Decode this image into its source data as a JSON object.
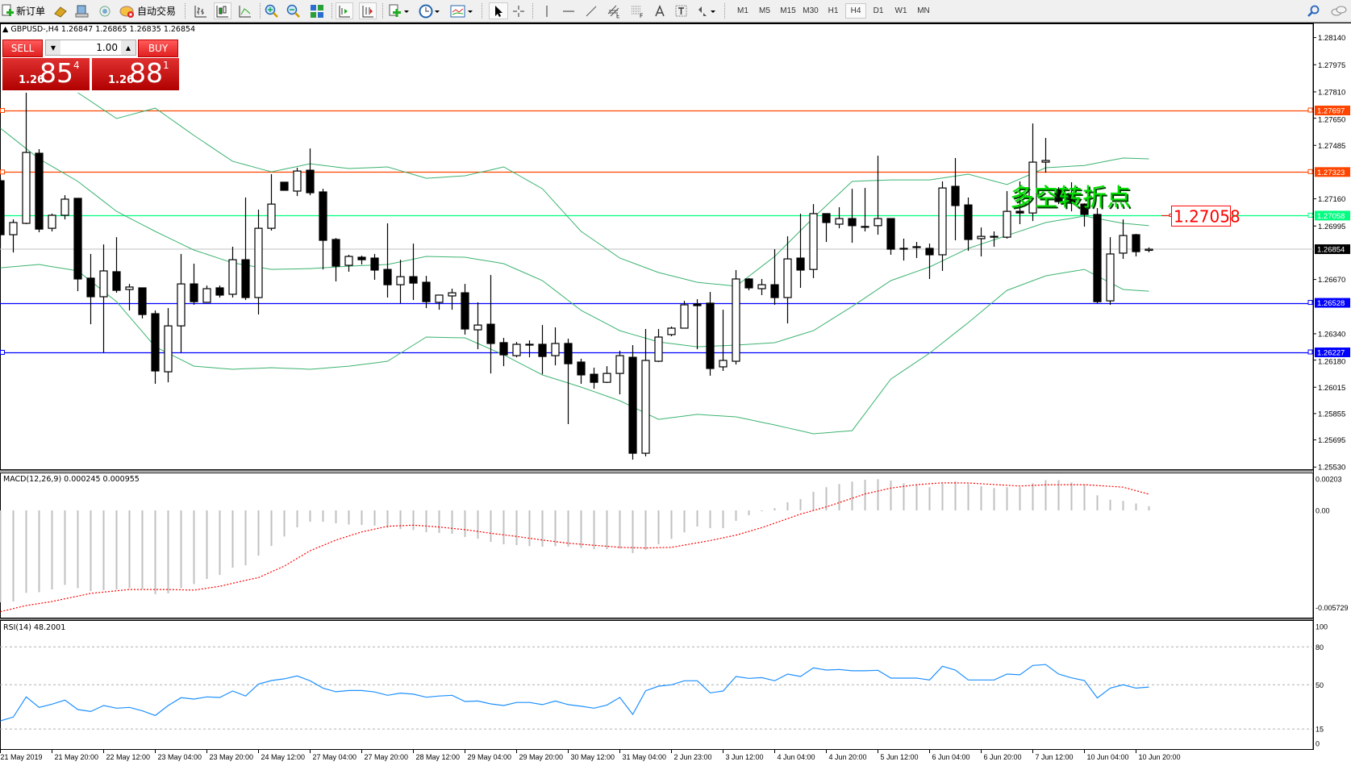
{
  "toolbar": {
    "new_order_label": "新订单",
    "auto_trading_label": "自动交易",
    "timeframes": [
      "M1",
      "M5",
      "M15",
      "M30",
      "H1",
      "H4",
      "D1",
      "W1",
      "MN"
    ],
    "active_timeframe": "H4"
  },
  "chart": {
    "header": "GBPUSD-,H4  1.26847 1.26865 1.26835 1.26854",
    "annotation_text": "多空转折点",
    "annotation_price_label": "1.27058",
    "colors": {
      "resistance": "#ff4500",
      "pivot": "#00ff80",
      "support": "#0000ff",
      "bands": "#3cb371",
      "annotation": "#00e000",
      "label": "#ff0000"
    },
    "price_axis_ticks": [
      "1.28140",
      "1.27975",
      "1.27810",
      "1.27650",
      "1.27485",
      "1.27160",
      "1.26995",
      "1.26670",
      "1.26340",
      "1.26180",
      "1.26015",
      "1.25855",
      "1.25695",
      "1.25530"
    ],
    "levels": [
      {
        "price": "1.27697",
        "color": "#ff4500",
        "type": "resistance"
      },
      {
        "price": "1.27323",
        "color": "#ff4500",
        "type": "resistance"
      },
      {
        "price": "1.27058",
        "color": "#00ff80",
        "type": "pivot"
      },
      {
        "price": "1.26528",
        "color": "#0000ff",
        "type": "support"
      },
      {
        "price": "1.26227",
        "color": "#0000ff",
        "type": "support"
      }
    ],
    "bid_line": {
      "price": "1.26854",
      "color": "#000000"
    },
    "time_labels": [
      "21 May 2019",
      "21 May 20:00",
      "22 May 12:00",
      "23 May 04:00",
      "23 May 20:00",
      "24 May 12:00",
      "27 May 04:00",
      "27 May 20:00",
      "28 May 12:00",
      "29 May 04:00",
      "29 May 20:00",
      "30 May 12:00",
      "31 May 04:00",
      "2 Jun 23:00",
      "3 Jun 12:00",
      "4 Jun 04:00",
      "4 Jun 20:00",
      "5 Jun 12:00",
      "6 Jun 04:00",
      "6 Jun 20:00",
      "7 Jun 12:00",
      "10 Jun 04:00",
      "10 Jun 20:00"
    ]
  },
  "trade_panel": {
    "sell_label": "SELL",
    "buy_label": "BUY",
    "lot": "1.00",
    "sell_price": {
      "prefix": "1.26",
      "big": "85",
      "sup": "4"
    },
    "buy_price": {
      "prefix": "1.26",
      "big": "88",
      "sup": "1"
    }
  },
  "macd": {
    "label": "MACD(12,26,9) 0.000245 0.000955",
    "axis_ticks": [
      "0.00203",
      "0.00",
      "-0.005729"
    ]
  },
  "rsi": {
    "label": "RSI(14) 48.2001",
    "axis_ticks": [
      "100",
      "80",
      "50",
      "15",
      "0"
    ],
    "levels": [
      80,
      50,
      15
    ]
  },
  "chart_data": {
    "type": "candlestick",
    "symbol": "GBPUSD-",
    "timeframe": "H4",
    "ylim": [
      1.2553,
      1.2814
    ],
    "ohlc": [
      [
        1.2727,
        1.2729,
        1.26864,
        1.26942
      ],
      [
        1.26942,
        1.27035,
        1.26834,
        1.27016
      ],
      [
        1.27011,
        1.27805,
        1.27006,
        1.27442
      ],
      [
        1.27437,
        1.27462,
        1.26957,
        1.26976
      ],
      [
        1.26981,
        1.2707,
        1.26962,
        1.2706
      ],
      [
        1.2706,
        1.27182,
        1.27035,
        1.27158
      ],
      [
        1.27163,
        1.27163,
        1.26599,
        1.26673
      ],
      [
        1.26678,
        1.26825,
        1.26398,
        1.26565
      ],
      [
        1.26565,
        1.26883,
        1.26227,
        1.26722
      ],
      [
        1.26717,
        1.26927,
        1.26589,
        1.26604
      ],
      [
        1.26609,
        1.26643,
        1.26482,
        1.26624
      ],
      [
        1.26619,
        1.26619,
        1.26433,
        1.26457
      ],
      [
        1.26462,
        1.26482,
        1.26036,
        1.26114
      ],
      [
        1.26109,
        1.26496,
        1.26045,
        1.26388
      ],
      [
        1.26388,
        1.26825,
        1.26227,
        1.26643
      ],
      [
        1.26643,
        1.26766,
        1.26516,
        1.26535
      ],
      [
        1.26531,
        1.26633,
        1.26531,
        1.26614
      ],
      [
        1.26619,
        1.26633,
        1.2656,
        1.26575
      ],
      [
        1.2658,
        1.26869,
        1.2656,
        1.2679
      ],
      [
        1.2679,
        1.27168,
        1.26545,
        1.2656
      ],
      [
        1.2656,
        1.27094,
        1.26457,
        1.26981
      ],
      [
        1.26981,
        1.2731,
        1.26967,
        1.27128
      ],
      [
        1.27261,
        1.27261,
        1.27212,
        1.27212
      ],
      [
        1.27207,
        1.27349,
        1.27177,
        1.27329
      ],
      [
        1.27334,
        1.27466,
        1.27182,
        1.27197
      ],
      [
        1.27202,
        1.27221,
        1.26731,
        1.26908
      ],
      [
        1.26913,
        1.26922,
        1.26658,
        1.26751
      ],
      [
        1.26756,
        1.2682,
        1.26717,
        1.2681
      ],
      [
        1.26805,
        1.26815,
        1.26761,
        1.2679
      ],
      [
        1.268,
        1.26825,
        1.26668,
        1.26727
      ],
      [
        1.26731,
        1.27011,
        1.2656,
        1.26638
      ],
      [
        1.26638,
        1.2679,
        1.26526,
        1.26687
      ],
      [
        1.26687,
        1.26888,
        1.26545,
        1.26648
      ],
      [
        1.26653,
        1.26692,
        1.26496,
        1.26535
      ],
      [
        1.26531,
        1.26575,
        1.26486,
        1.26575
      ],
      [
        1.2657,
        1.26614,
        1.26486,
        1.26589
      ],
      [
        1.26589,
        1.26643,
        1.26335,
        1.26369
      ],
      [
        1.26364,
        1.26531,
        1.26246,
        1.26393
      ],
      [
        1.26398,
        1.26697,
        1.26099,
        1.26281
      ],
      [
        1.26286,
        1.26315,
        1.26143,
        1.26212
      ],
      [
        1.26207,
        1.2629,
        1.26197,
        1.26276
      ],
      [
        1.26276,
        1.263,
        1.26197,
        1.26276
      ],
      [
        1.26276,
        1.26393,
        1.26094,
        1.26202
      ],
      [
        1.26207,
        1.26379,
        1.26148,
        1.26281
      ],
      [
        1.26281,
        1.2631,
        1.25791,
        1.26158
      ],
      [
        1.26168,
        1.26188,
        1.26036,
        1.2609
      ],
      [
        1.26094,
        1.26134,
        1.26006,
        1.26045
      ],
      [
        1.26045,
        1.26143,
        1.26041,
        1.26099
      ],
      [
        1.26099,
        1.26237,
        1.25972,
        1.26207
      ],
      [
        1.26197,
        1.26271,
        1.25575,
        1.25614
      ],
      [
        1.25614,
        1.26369,
        1.25595,
        1.26178
      ],
      [
        1.26173,
        1.26369,
        1.26168,
        1.2632
      ],
      [
        1.26335,
        1.26384,
        1.26325,
        1.26374
      ],
      [
        1.26374,
        1.2654,
        1.26374,
        1.26516
      ],
      [
        1.26521,
        1.2655,
        1.26246,
        1.26511
      ],
      [
        1.26526,
        1.26594,
        1.26085,
        1.26129
      ],
      [
        1.26139,
        1.26486,
        1.26114,
        1.26178
      ],
      [
        1.26173,
        1.26727,
        1.26153,
        1.26673
      ],
      [
        1.26673,
        1.26678,
        1.26604,
        1.26619
      ],
      [
        1.26614,
        1.26673,
        1.26575,
        1.26638
      ],
      [
        1.26638,
        1.26854,
        1.26516,
        1.2656
      ],
      [
        1.2656,
        1.26932,
        1.26403,
        1.26795
      ],
      [
        1.268,
        1.2707,
        1.26619,
        1.26727
      ],
      [
        1.26731,
        1.27128,
        1.26678,
        1.2707
      ],
      [
        1.2707,
        1.2707,
        1.26898,
        1.27016
      ],
      [
        1.27006,
        1.27109,
        1.26981,
        1.2704
      ],
      [
        1.2704,
        1.27221,
        1.26893,
        1.26997
      ],
      [
        1.26992,
        1.27226,
        1.26962,
        1.26992
      ],
      [
        1.26997,
        1.27422,
        1.26942,
        1.2704
      ],
      [
        1.2704,
        1.2704,
        1.2682,
        1.26854
      ],
      [
        1.26859,
        1.26918,
        1.26785,
        1.26859
      ],
      [
        1.26869,
        1.26898,
        1.268,
        1.26869
      ],
      [
        1.26859,
        1.26888,
        1.26673,
        1.2682
      ],
      [
        1.2682,
        1.27266,
        1.26722,
        1.27226
      ],
      [
        1.27236,
        1.27408,
        1.26908,
        1.27119
      ],
      [
        1.27123,
        1.27168,
        1.26844,
        1.26913
      ],
      [
        1.26918,
        1.26986,
        1.2681,
        1.26932
      ],
      [
        1.26932,
        1.26962,
        1.26869,
        1.26932
      ],
      [
        1.26927,
        1.27207,
        1.26918,
        1.27084
      ],
      [
        1.27084,
        1.27266,
        1.27006,
        1.27074
      ],
      [
        1.27074,
        1.27618,
        1.27025,
        1.27383
      ],
      [
        1.27383,
        1.2753,
        1.27319,
        1.27393
      ],
      [
        1.27217,
        1.27231,
        1.27128,
        1.27143
      ],
      [
        1.27192,
        1.27261,
        1.27084,
        1.27133
      ],
      [
        1.27128,
        1.27133,
        1.26991,
        1.27065
      ],
      [
        1.27065,
        1.27104,
        1.26526,
        1.26535
      ],
      [
        1.2654,
        1.26927,
        1.26516,
        1.26825
      ],
      [
        1.2683,
        1.27035,
        1.26795,
        1.26937
      ],
      [
        1.26942,
        1.26947,
        1.2681,
        1.26839
      ],
      [
        1.26847,
        1.26865,
        1.26835,
        1.26854
      ]
    ],
    "bollinger_upper": [
      null,
      null,
      null,
      null,
      null,
      null,
      1.27805,
      null,
      null,
      1.27648,
      null,
      null,
      1.27711,
      null,
      null,
      1.27545,
      null,
      null,
      1.27388,
      null,
      null,
      1.27324,
      null,
      null,
      1.27373,
      null,
      null,
      1.27344,
      null,
      null,
      1.27354,
      null,
      null,
      1.27285,
      null,
      null,
      1.273,
      null,
      null,
      1.27354,
      null,
      null,
      1.27221,
      null,
      null,
      1.26962,
      null,
      null,
      1.268,
      null,
      null,
      1.26712,
      null,
      null,
      1.26653,
      null,
      null,
      1.26629,
      null,
      null,
      1.2681,
      null,
      null,
      1.27045,
      null,
      null,
      1.27266,
      null,
      null,
      1.27275,
      null,
      null,
      1.27275,
      null,
      null,
      1.2731,
      null,
      null,
      1.27247,
      null,
      null,
      1.27349,
      null,
      null,
      1.27363,
      null,
      null,
      1.27408,
      null,
      1.27403
    ],
    "bollinger_middle": [
      1.27589,
      null,
      null,
      1.27403,
      null,
      null,
      1.27266,
      null,
      null,
      1.27084,
      null,
      null,
      1.26962,
      null,
      null,
      1.26849,
      null,
      null,
      1.26771,
      null,
      null,
      1.26731,
      null,
      null,
      1.26736,
      null,
      null,
      1.26751,
      null,
      null,
      1.26761,
      null,
      null,
      1.2681,
      null,
      null,
      1.26805,
      null,
      null,
      1.26766,
      null,
      null,
      1.26663,
      null,
      null,
      1.26482,
      null,
      null,
      1.26359,
      null,
      null,
      1.2629,
      null,
      null,
      1.26261,
      null,
      null,
      1.26271,
      null,
      null,
      1.26286,
      null,
      null,
      1.26359,
      null,
      null,
      1.26506,
      null,
      null,
      1.26663,
      null,
      null,
      1.26746,
      null,
      null,
      1.26859,
      null,
      null,
      1.26937,
      null,
      null,
      1.27016,
      null,
      null,
      1.27055,
      null,
      null,
      1.27011,
      null,
      1.26997
    ],
    "bollinger_lower": [
      1.26741,
      null,
      null,
      1.26761,
      null,
      null,
      1.26722,
      null,
      null,
      1.26535,
      null,
      null,
      1.26261,
      null,
      null,
      1.26143,
      null,
      null,
      1.26124,
      null,
      null,
      1.26134,
      null,
      null,
      1.26124,
      null,
      null,
      1.26143,
      null,
      null,
      1.26173,
      null,
      null,
      1.2632,
      null,
      null,
      1.26315,
      null,
      null,
      1.26212,
      null,
      null,
      1.2609,
      null,
      null,
      1.26016,
      null,
      null,
      1.25933,
      null,
      null,
      1.2582,
      null,
      null,
      1.2585,
      null,
      null,
      1.25835,
      null,
      null,
      1.25786,
      null,
      null,
      1.25732,
      null,
      null,
      1.25751,
      null,
      null,
      1.26065,
      null,
      null,
      1.26222,
      null,
      null,
      1.26408,
      null,
      null,
      1.26604,
      null,
      null,
      1.26692,
      null,
      null,
      1.26731,
      null,
      null,
      1.26609,
      null,
      1.26599
    ],
    "macd_histogram": [
      -0.00543,
      -0.00538,
      -0.00487,
      -0.00483,
      -0.00467,
      -0.0044,
      -0.00459,
      -0.00476,
      -0.00471,
      -0.00467,
      -0.0046,
      -0.00463,
      -0.00495,
      -0.0049,
      -0.00459,
      -0.00435,
      -0.00405,
      -0.00381,
      -0.00338,
      -0.00324,
      -0.00267,
      -0.0021,
      -0.00154,
      -0.001,
      -0.00067,
      -0.00067,
      -0.00076,
      -0.00083,
      -0.00086,
      -0.0009,
      -0.00103,
      -0.0011,
      -0.00116,
      -0.00129,
      -0.00133,
      -0.00138,
      -0.00157,
      -0.00167,
      -0.00186,
      -0.002,
      -0.00205,
      -0.00211,
      -0.00214,
      -0.00211,
      -0.00214,
      -0.00222,
      -0.00229,
      -0.00229,
      -0.00225,
      -0.00252,
      -0.00233,
      -0.002,
      -0.00168,
      -0.0013,
      -0.00095,
      -0.00105,
      -0.00105,
      -0.00062,
      -0.00029,
      -5e-05,
      0.00013,
      0.00048,
      0.00067,
      0.0011,
      0.00137,
      0.00156,
      0.0017,
      0.00181,
      0.00184,
      0.00176,
      0.0016,
      0.00152,
      0.00137,
      0.0016,
      0.00171,
      0.00156,
      0.00143,
      0.00132,
      0.00137,
      0.00137,
      0.0016,
      0.00179,
      0.00179,
      0.00165,
      0.00152,
      0.00089,
      0.00063,
      0.00056,
      0.00041,
      0.000245
    ],
    "macd_signal": [
      -0.00598,
      null,
      -0.00562,
      null,
      -0.00538,
      null,
      null,
      -0.0049,
      null,
      null,
      -0.00467,
      null,
      null,
      -0.00467,
      null,
      -0.00471,
      null,
      -0.00448,
      null,
      -0.00413,
      -0.00397,
      null,
      -0.00329,
      null,
      -0.00238,
      null,
      -0.00175,
      null,
      -0.00127,
      null,
      -0.00094,
      null,
      -0.00087,
      null,
      -0.00098,
      null,
      -0.00114,
      null,
      -0.00135,
      null,
      -0.00154,
      null,
      -0.00175,
      null,
      -0.00194,
      null,
      null,
      null,
      -0.00218,
      null,
      -0.00222,
      null,
      -0.00218,
      null,
      null,
      -0.00178,
      null,
      -0.00146,
      null,
      -0.00102,
      null,
      null,
      -0.00022,
      null,
      0.00021,
      null,
      null,
      0.00097,
      null,
      0.00132,
      null,
      0.00152,
      null,
      0.00163,
      null,
      0.00162,
      null,
      null,
      null,
      0.00144,
      null,
      0.00151,
      null,
      null,
      0.00152,
      null,
      null,
      0.00137,
      null,
      0.000955
    ],
    "rsi": [
      21.5,
      24.5,
      40.4,
      32.1,
      34.7,
      37.9,
      30.4,
      28.9,
      33.6,
      31.5,
      32.1,
      29.4,
      25.7,
      33.6,
      39.8,
      38.7,
      40.4,
      40.0,
      45.1,
      41.1,
      50.6,
      53.4,
      54.7,
      57.0,
      53.2,
      47.4,
      44.5,
      45.5,
      45.5,
      44.3,
      41.7,
      43.4,
      42.6,
      40.2,
      41.1,
      41.7,
      36.8,
      37.2,
      34.9,
      33.6,
      36.0,
      36.0,
      34.3,
      37.2,
      34.3,
      33.0,
      31.5,
      34.0,
      40.0,
      26.6,
      45.3,
      48.9,
      50.0,
      53.2,
      53.2,
      43.6,
      45.1,
      56.6,
      55.1,
      55.7,
      53.2,
      58.5,
      56.6,
      63.4,
      61.7,
      62.1,
      61.1,
      61.1,
      61.5,
      55.3,
      55.3,
      55.3,
      53.8,
      64.7,
      61.7,
      53.8,
      53.8,
      53.8,
      58.5,
      57.9,
      65.3,
      66.0,
      58.5,
      55.5,
      53.4,
      39.6,
      47.4,
      50.0,
      47.4,
      48.2
    ]
  }
}
